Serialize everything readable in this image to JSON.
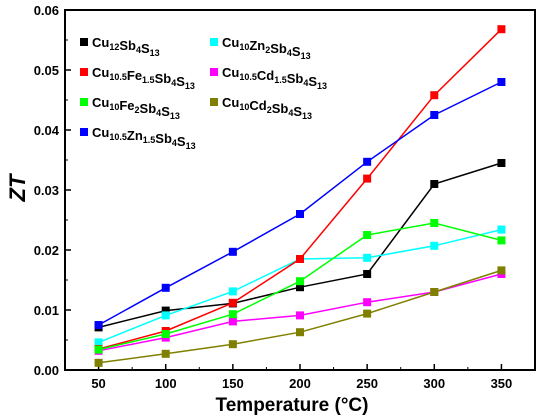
{
  "chart_data": {
    "type": "line",
    "xlabel": "Temperature (°C)",
    "ylabel": "ZT",
    "xlim": [
      25,
      375
    ],
    "ylim": [
      0.0,
      0.06
    ],
    "x_ticks": [
      50,
      100,
      150,
      200,
      250,
      300,
      350
    ],
    "y_ticks": [
      0.0,
      0.01,
      0.02,
      0.03,
      0.04,
      0.05,
      0.06
    ],
    "y_tick_labels": [
      "0.00",
      "0.01",
      "0.02",
      "0.03",
      "0.04",
      "0.05",
      "0.06"
    ],
    "x": [
      50,
      100,
      150,
      200,
      250,
      300,
      350
    ],
    "grid": false,
    "legend_placement": "top-left",
    "series": [
      {
        "name": "Cu12Sb4S13",
        "color": "#000000",
        "values": [
          0.0071,
          0.0099,
          0.0111,
          0.0138,
          0.016,
          0.031,
          0.0345
        ]
      },
      {
        "name": "Cu10Zn2Sb4S13",
        "color": "#00FFFF",
        "values": [
          0.0046,
          0.0091,
          0.0131,
          0.0185,
          0.0187,
          0.0207,
          0.0234
        ]
      },
      {
        "name": "Cu10.5Fe1.5Sb4S13",
        "color": "#FF0000",
        "values": [
          0.0035,
          0.0065,
          0.0112,
          0.0185,
          0.0319,
          0.0458,
          0.0568
        ]
      },
      {
        "name": "Cu10.5Cd1.5Sb4S13",
        "color": "#FF00FF",
        "values": [
          0.0032,
          0.0054,
          0.0081,
          0.0091,
          0.0113,
          0.013,
          0.016
        ]
      },
      {
        "name": "Cu10Fe2Sb4S13",
        "color": "#00FF00",
        "values": [
          0.0034,
          0.006,
          0.0093,
          0.0148,
          0.0225,
          0.0245,
          0.0216
        ]
      },
      {
        "name": "Cu10Cd2Sb4S13",
        "color": "#808000",
        "values": [
          0.0012,
          0.0027,
          0.0043,
          0.0063,
          0.0094,
          0.013,
          0.0166
        ]
      },
      {
        "name": "Cu10.5Zn1.5Sb4S13",
        "color": "#0000FF",
        "values": [
          0.0075,
          0.0137,
          0.0197,
          0.026,
          0.0347,
          0.0425,
          0.048
        ]
      }
    ],
    "legend_parts": [
      [
        [
          "Cu",
          ""
        ],
        [
          "12",
          "sub"
        ],
        [
          "Sb",
          ""
        ],
        [
          "4",
          "sub"
        ],
        [
          "S",
          ""
        ],
        [
          "13",
          "sub"
        ]
      ],
      [
        [
          "Cu",
          ""
        ],
        [
          "10",
          "sub"
        ],
        [
          "Zn",
          ""
        ],
        [
          "2",
          "sub"
        ],
        [
          "Sb",
          ""
        ],
        [
          "4",
          "sub"
        ],
        [
          "S",
          ""
        ],
        [
          "13",
          "sub"
        ]
      ],
      [
        [
          "Cu",
          ""
        ],
        [
          "10.5",
          "sub"
        ],
        [
          "Fe",
          ""
        ],
        [
          "1.5",
          "sub"
        ],
        [
          "Sb",
          ""
        ],
        [
          "4",
          "sub"
        ],
        [
          "S",
          ""
        ],
        [
          "13",
          "sub"
        ]
      ],
      [
        [
          "Cu",
          ""
        ],
        [
          "10.5",
          "sub"
        ],
        [
          "Cd",
          ""
        ],
        [
          "1.5",
          "sub"
        ],
        [
          "Sb",
          ""
        ],
        [
          "4",
          "sub"
        ],
        [
          "S",
          ""
        ],
        [
          "13",
          "sub"
        ]
      ],
      [
        [
          "Cu",
          ""
        ],
        [
          "10",
          "sub"
        ],
        [
          "Fe",
          ""
        ],
        [
          "2",
          "sub"
        ],
        [
          "Sb",
          ""
        ],
        [
          "4",
          "sub"
        ],
        [
          "S",
          ""
        ],
        [
          "13",
          "sub"
        ]
      ],
      [
        [
          "Cu",
          ""
        ],
        [
          "10",
          "sub"
        ],
        [
          "Cd",
          ""
        ],
        [
          "2",
          "sub"
        ],
        [
          "Sb",
          ""
        ],
        [
          "4",
          "sub"
        ],
        [
          "S",
          ""
        ],
        [
          "13",
          "sub"
        ]
      ],
      [
        [
          "Cu",
          ""
        ],
        [
          "10.5",
          "sub"
        ],
        [
          "Zn",
          ""
        ],
        [
          "1.5",
          "sub"
        ],
        [
          "Sb",
          ""
        ],
        [
          "4",
          "sub"
        ],
        [
          "S",
          ""
        ],
        [
          "13",
          "sub"
        ]
      ]
    ]
  }
}
